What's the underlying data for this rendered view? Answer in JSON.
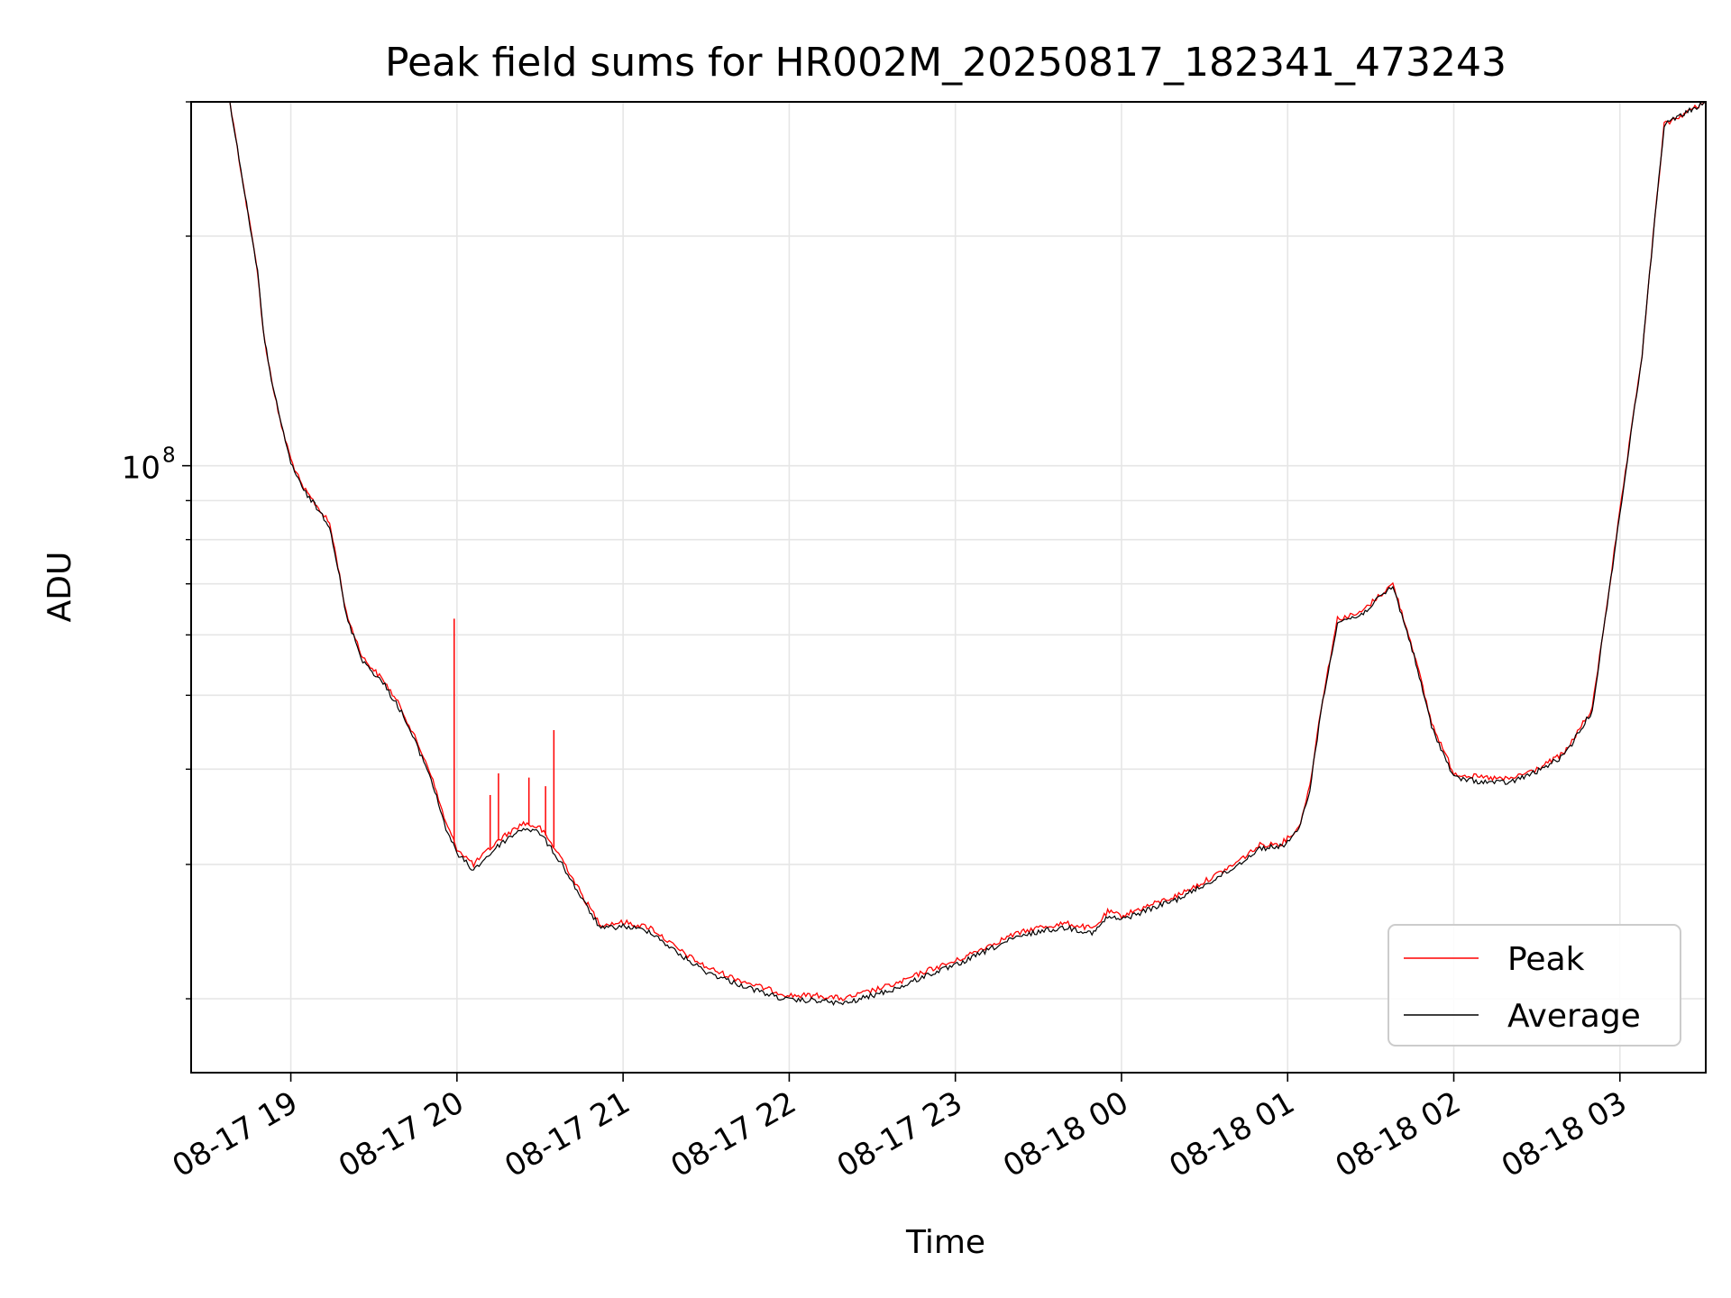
{
  "chart_data": {
    "type": "line",
    "title": "Peak field sums for HR002M_20250817_182341_473243",
    "xlabel": "Time",
    "ylabel": "ADU",
    "y_scale": "log",
    "y_major_tick": {
      "base": "10",
      "exponent": "8",
      "value": 100000000
    },
    "ylim": [
      16000000,
      300000000
    ],
    "xlim": [
      "2025-08-17 18:24",
      "2025-08-18 03:31"
    ],
    "x_tick_labels": [
      "08-17 19",
      "08-17 20",
      "08-17 21",
      "08-17 22",
      "08-17 23",
      "08-18 00",
      "08-18 01",
      "08-18 02",
      "08-18 03"
    ],
    "x_ticks": [
      "2025-08-17 19:00",
      "2025-08-17 20:00",
      "2025-08-17 21:00",
      "2025-08-17 22:00",
      "2025-08-17 23:00",
      "2025-08-18 00:00",
      "2025-08-18 01:00",
      "2025-08-18 02:00",
      "2025-08-18 03:00"
    ],
    "grid": true,
    "legend_position": "lower right",
    "series": [
      {
        "name": "Peak",
        "color": "#ff0000",
        "x": [
          "2025-08-17 18:24",
          "2025-08-17 18:38",
          "2025-08-17 18:44",
          "2025-08-17 18:48",
          "2025-08-17 18:50",
          "2025-08-17 18:53",
          "2025-08-17 18:56",
          "2025-08-17 19:00",
          "2025-08-17 19:04",
          "2025-08-17 19:10",
          "2025-08-17 19:14",
          "2025-08-17 19:17",
          "2025-08-17 19:20",
          "2025-08-17 19:26",
          "2025-08-17 19:34",
          "2025-08-17 19:40",
          "2025-08-17 19:50",
          "2025-08-17 19:56",
          "2025-08-17 20:00",
          "2025-08-17 20:06",
          "2025-08-17 20:10",
          "2025-08-17 20:16",
          "2025-08-17 20:24",
          "2025-08-17 20:30",
          "2025-08-17 20:38",
          "2025-08-17 20:46",
          "2025-08-17 20:52",
          "2025-08-17 21:00",
          "2025-08-17 21:10",
          "2025-08-17 21:20",
          "2025-08-17 21:30",
          "2025-08-17 21:40",
          "2025-08-17 21:50",
          "2025-08-17 22:00",
          "2025-08-17 22:10",
          "2025-08-17 22:20",
          "2025-08-17 22:30",
          "2025-08-17 22:40",
          "2025-08-17 22:50",
          "2025-08-17 23:00",
          "2025-08-17 23:10",
          "2025-08-17 23:20",
          "2025-08-17 23:30",
          "2025-08-17 23:40",
          "2025-08-17 23:50",
          "2025-08-17 23:55",
          "2025-08-18 00:00",
          "2025-08-18 00:10",
          "2025-08-18 00:20",
          "2025-08-18 00:30",
          "2025-08-18 00:40",
          "2025-08-18 00:50",
          "2025-08-18 00:58",
          "2025-08-18 01:04",
          "2025-08-18 01:08",
          "2025-08-18 01:12",
          "2025-08-18 01:18",
          "2025-08-18 01:26",
          "2025-08-18 01:32",
          "2025-08-18 01:38",
          "2025-08-18 01:45",
          "2025-08-18 01:52",
          "2025-08-18 02:00",
          "2025-08-18 02:10",
          "2025-08-18 02:20",
          "2025-08-18 02:30",
          "2025-08-18 02:40",
          "2025-08-18 02:50",
          "2025-08-18 03:00",
          "2025-08-18 03:08",
          "2025-08-18 03:12",
          "2025-08-18 03:16",
          "2025-08-18 03:31"
        ],
        "y": [
          300000000,
          300000000,
          220000000,
          180000000,
          150000000,
          130000000,
          115000000,
          102000000,
          94000000,
          88000000,
          84000000,
          74000000,
          64000000,
          56000000,
          52000000,
          48000000,
          40000000,
          34000000,
          31500000,
          30000000,
          31000000,
          32500000,
          34000000,
          33500000,
          30500000,
          27000000,
          25000000,
          25200000,
          24800000,
          23200000,
          22000000,
          21300000,
          20700000,
          20200000,
          20200000,
          20000000,
          20500000,
          21000000,
          21800000,
          22400000,
          23300000,
          24200000,
          24800000,
          25100000,
          24700000,
          26000000,
          25700000,
          26500000,
          27300000,
          28500000,
          29900000,
          31800000,
          32000000,
          33500000,
          38000000,
          48000000,
          63000000,
          64000000,
          67000000,
          70000000,
          58000000,
          46000000,
          39500000,
          39000000,
          38800000,
          40000000,
          42000000,
          48000000,
          87000000,
          140000000,
          200000000,
          280000000,
          300000000
        ],
        "spikes": [
          {
            "x": "2025-08-17 19:59",
            "y": 63000000
          },
          {
            "x": "2025-08-17 20:12",
            "y": 37000000
          },
          {
            "x": "2025-08-17 20:15",
            "y": 39500000
          },
          {
            "x": "2025-08-17 20:26",
            "y": 39000000
          },
          {
            "x": "2025-08-17 20:32",
            "y": 38000000
          },
          {
            "x": "2025-08-17 20:35",
            "y": 45000000
          }
        ]
      },
      {
        "name": "Average",
        "color": "#000000",
        "x": [
          "2025-08-17 18:24",
          "2025-08-17 18:38",
          "2025-08-17 18:44",
          "2025-08-17 18:48",
          "2025-08-17 18:50",
          "2025-08-17 18:53",
          "2025-08-17 18:56",
          "2025-08-17 19:00",
          "2025-08-17 19:04",
          "2025-08-17 19:10",
          "2025-08-17 19:14",
          "2025-08-17 19:17",
          "2025-08-17 19:20",
          "2025-08-17 19:26",
          "2025-08-17 19:34",
          "2025-08-17 19:40",
          "2025-08-17 19:50",
          "2025-08-17 19:56",
          "2025-08-17 20:00",
          "2025-08-17 20:06",
          "2025-08-17 20:10",
          "2025-08-17 20:16",
          "2025-08-17 20:24",
          "2025-08-17 20:30",
          "2025-08-17 20:38",
          "2025-08-17 20:46",
          "2025-08-17 20:52",
          "2025-08-17 21:00",
          "2025-08-17 21:10",
          "2025-08-17 21:20",
          "2025-08-17 21:30",
          "2025-08-17 21:40",
          "2025-08-17 21:50",
          "2025-08-17 22:00",
          "2025-08-17 22:10",
          "2025-08-17 22:20",
          "2025-08-17 22:30",
          "2025-08-17 22:40",
          "2025-08-17 22:50",
          "2025-08-17 23:00",
          "2025-08-17 23:10",
          "2025-08-17 23:20",
          "2025-08-17 23:30",
          "2025-08-17 23:40",
          "2025-08-17 23:50",
          "2025-08-17 23:55",
          "2025-08-18 00:00",
          "2025-08-18 00:10",
          "2025-08-18 00:20",
          "2025-08-18 00:30",
          "2025-08-18 00:40",
          "2025-08-18 00:50",
          "2025-08-18 00:58",
          "2025-08-18 01:04",
          "2025-08-18 01:08",
          "2025-08-18 01:12",
          "2025-08-18 01:18",
          "2025-08-18 01:26",
          "2025-08-18 01:32",
          "2025-08-18 01:38",
          "2025-08-18 01:45",
          "2025-08-18 01:52",
          "2025-08-18 02:00",
          "2025-08-18 02:10",
          "2025-08-18 02:20",
          "2025-08-18 02:30",
          "2025-08-18 02:40",
          "2025-08-18 02:50",
          "2025-08-18 03:00",
          "2025-08-18 03:08",
          "2025-08-18 03:12",
          "2025-08-18 03:16",
          "2025-08-18 03:31"
        ],
        "y": [
          300000000,
          300000000,
          220000000,
          180000000,
          150000000,
          130000000,
          115000000,
          101000000,
          93500000,
          87500000,
          83500000,
          73500000,
          63500000,
          55500000,
          51500000,
          47500000,
          39500000,
          33500000,
          31000000,
          29500000,
          30500000,
          32000000,
          33500000,
          33000000,
          30000000,
          26700000,
          24700000,
          24900000,
          24500000,
          22900000,
          21700000,
          21000000,
          20400000,
          19900000,
          19900000,
          19700000,
          20200000,
          20700000,
          21500000,
          22100000,
          23000000,
          23900000,
          24500000,
          24800000,
          24400000,
          25600000,
          25400000,
          26200000,
          27000000,
          28200000,
          29600000,
          31500000,
          31700000,
          33200000,
          37600000,
          47500000,
          62500000,
          63500000,
          66500000,
          69500000,
          57500000,
          45500000,
          39000000,
          38500000,
          38400000,
          39700000,
          41700000,
          47700000,
          86500000,
          140000000,
          200000000,
          280000000,
          300000000
        ]
      }
    ]
  }
}
